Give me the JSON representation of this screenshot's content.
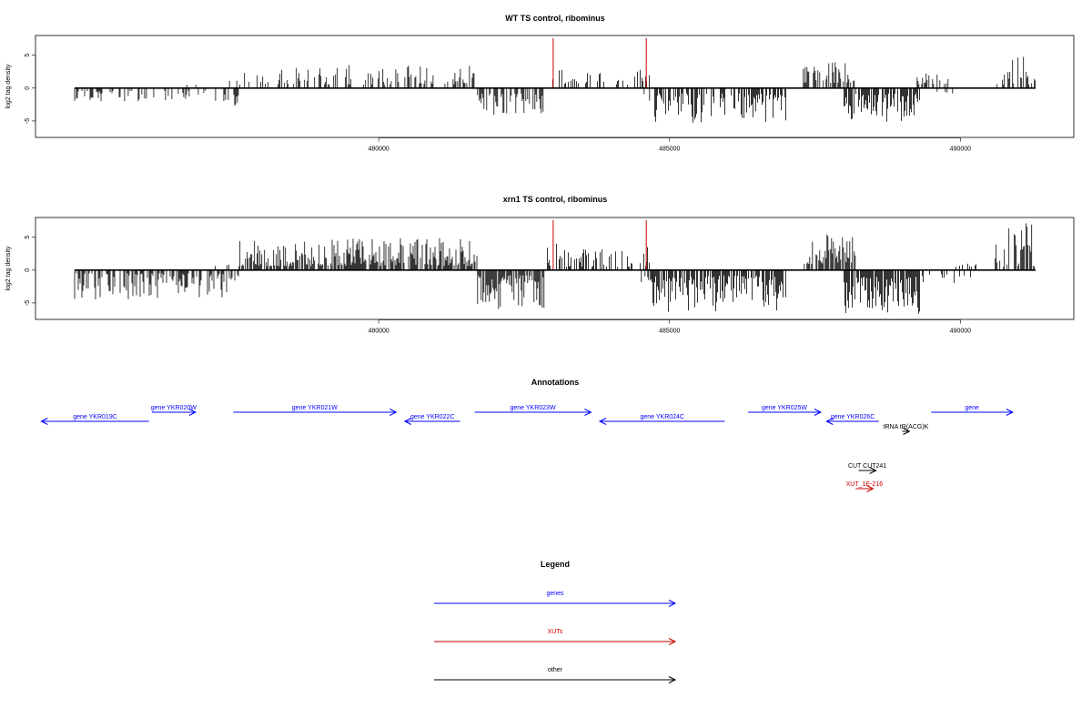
{
  "panels": [
    {
      "title": "WT TS control, ribominus",
      "ylabel": "log2 tag density",
      "chart_data": {
        "type": "bar",
        "title": "WT TS control, ribominus",
        "ylabel": "log2 tag density",
        "xlim": [
          474100,
          491950
        ],
        "ylim": [
          -7.5,
          8
        ],
        "xticks": [
          480000,
          485000,
          490000
        ],
        "yticks": [
          -5,
          0,
          5
        ],
        "markers": [
          483000,
          484600
        ],
        "marker_color": "#cc0000",
        "data_segments": [
          {
            "start": 474600,
            "end": 475600,
            "sign": -1,
            "density": 0.35,
            "min": 0.4,
            "max": 2.5
          },
          {
            "start": 475600,
            "end": 477800,
            "sign": -1,
            "density": 0.15,
            "min": 0.4,
            "max": 2.0
          },
          {
            "start": 476700,
            "end": 477600,
            "sign": 1,
            "density": 0.08,
            "min": 0.5,
            "max": 1.2
          },
          {
            "start": 477400,
            "end": 477600,
            "sign": -1,
            "density": 0.5,
            "min": 1.0,
            "max": 2.8
          },
          {
            "start": 477600,
            "end": 480200,
            "sign": 1,
            "density": 0.3,
            "min": 0.5,
            "max": 3.5
          },
          {
            "start": 480200,
            "end": 481700,
            "sign": 1,
            "density": 0.45,
            "min": 0.6,
            "max": 3.5
          },
          {
            "start": 481700,
            "end": 482850,
            "sign": -1,
            "density": 0.5,
            "min": 0.8,
            "max": 4.2
          },
          {
            "start": 482900,
            "end": 484700,
            "sign": 1,
            "density": 0.25,
            "min": 0.5,
            "max": 3.0
          },
          {
            "start": 484500,
            "end": 484700,
            "sign": -1,
            "density": 0.5,
            "min": 0.8,
            "max": 2.0
          },
          {
            "start": 484700,
            "end": 487000,
            "sign": -1,
            "density": 0.6,
            "min": 0.8,
            "max": 5.3
          },
          {
            "start": 487300,
            "end": 488200,
            "sign": 1,
            "density": 0.65,
            "min": 0.8,
            "max": 4.0
          },
          {
            "start": 488000,
            "end": 489300,
            "sign": -1,
            "density": 0.75,
            "min": 0.8,
            "max": 5.2
          },
          {
            "start": 489100,
            "end": 489800,
            "sign": 1,
            "density": 0.3,
            "min": 0.6,
            "max": 2.5
          },
          {
            "start": 489600,
            "end": 490100,
            "sign": -1,
            "density": 0.1,
            "min": 0.5,
            "max": 1.0
          },
          {
            "start": 490600,
            "end": 491350,
            "sign": 1,
            "density": 0.4,
            "min": 0.5,
            "max": 5.5
          }
        ]
      }
    },
    {
      "title": "xrn1 TS control, ribominus",
      "ylabel": "log2 tag density",
      "chart_data": {
        "type": "bar",
        "title": "xrn1 TS control, ribominus",
        "ylabel": "log2 tag density",
        "xlim": [
          474100,
          491950
        ],
        "ylim": [
          -7.5,
          8
        ],
        "xticks": [
          480000,
          485000,
          490000
        ],
        "yticks": [
          -5,
          0,
          5
        ],
        "markers": [
          483000,
          484600
        ],
        "marker_color": "#cc0000",
        "data_segments": [
          {
            "start": 474600,
            "end": 477600,
            "sign": -1,
            "density": 0.6,
            "min": 0.5,
            "max": 4.5
          },
          {
            "start": 477000,
            "end": 477600,
            "sign": 1,
            "density": 0.1,
            "min": 0.4,
            "max": 1.2
          },
          {
            "start": 477600,
            "end": 479200,
            "sign": 1,
            "density": 0.75,
            "min": 0.6,
            "max": 4.5
          },
          {
            "start": 479200,
            "end": 481700,
            "sign": 1,
            "density": 0.75,
            "min": 0.6,
            "max": 5.0
          },
          {
            "start": 481700,
            "end": 482850,
            "sign": -1,
            "density": 0.75,
            "min": 0.8,
            "max": 6.0
          },
          {
            "start": 482900,
            "end": 484700,
            "sign": 1,
            "density": 0.4,
            "min": 0.5,
            "max": 4.2
          },
          {
            "start": 484500,
            "end": 484700,
            "sign": -1,
            "density": 0.5,
            "min": 0.8,
            "max": 2.0
          },
          {
            "start": 484700,
            "end": 487000,
            "sign": -1,
            "density": 0.75,
            "min": 0.8,
            "max": 6.5
          },
          {
            "start": 487300,
            "end": 488200,
            "sign": 1,
            "density": 0.75,
            "min": 0.8,
            "max": 5.5
          },
          {
            "start": 488000,
            "end": 489300,
            "sign": -1,
            "density": 0.9,
            "min": 1.0,
            "max": 7.0
          },
          {
            "start": 489300,
            "end": 490200,
            "sign": -1,
            "density": 0.2,
            "min": 0.5,
            "max": 3.0
          },
          {
            "start": 489800,
            "end": 490300,
            "sign": 1,
            "density": 0.1,
            "min": 0.5,
            "max": 1.0
          },
          {
            "start": 490600,
            "end": 491350,
            "sign": 1,
            "density": 0.55,
            "min": 0.5,
            "max": 7.5
          }
        ]
      }
    }
  ],
  "annotations": {
    "title": "Annotations",
    "features": [
      {
        "label": "gene YKR019C",
        "start": 474200,
        "end": 476050,
        "strand": "-",
        "color": "#0000ff",
        "row": 1
      },
      {
        "label": "gene YKR020W",
        "start": 476100,
        "end": 476850,
        "strand": "+",
        "color": "#0000ff",
        "row": 0
      },
      {
        "label": "gene YKR021W",
        "start": 477500,
        "end": 480300,
        "strand": "+",
        "color": "#0000ff",
        "row": 0
      },
      {
        "label": "gene YKR022C",
        "start": 480450,
        "end": 481400,
        "strand": "-",
        "color": "#0000ff",
        "row": 1
      },
      {
        "label": "gene YKR023W",
        "start": 481650,
        "end": 483650,
        "strand": "+",
        "color": "#0000ff",
        "row": 0
      },
      {
        "label": "gene YKR024C",
        "start": 483800,
        "end": 485950,
        "strand": "-",
        "color": "#0000ff",
        "row": 1
      },
      {
        "label": "gene YKR025W",
        "start": 486350,
        "end": 487600,
        "strand": "+",
        "color": "#0000ff",
        "row": 0
      },
      {
        "label": "gene YKR026C",
        "start": 487700,
        "end": 488600,
        "strand": "-",
        "color": "#0000ff",
        "row": 1
      },
      {
        "label": "tRNA tR(ACG)K",
        "start": 489000,
        "end": 489100,
        "strand": "+",
        "color": "#000000",
        "row": 2
      },
      {
        "label": "gene",
        "start": 489500,
        "end": 490900,
        "strand": "+",
        "color": "#0000ff",
        "row": 0
      },
      {
        "label": "CUT CUT241",
        "start": 488250,
        "end": 488550,
        "strand": "+",
        "color": "#000000",
        "row": 3
      },
      {
        "label": "XUT_1E-216",
        "start": 488200,
        "end": 488500,
        "strand": "+",
        "color": "#cc0000",
        "row": 4
      }
    ]
  },
  "legend": {
    "title": "Legend",
    "items": [
      {
        "label": "genes",
        "color": "#0000ff"
      },
      {
        "label": "XUTs",
        "color": "#cc0000"
      },
      {
        "label": "other",
        "color": "#000000"
      }
    ]
  }
}
